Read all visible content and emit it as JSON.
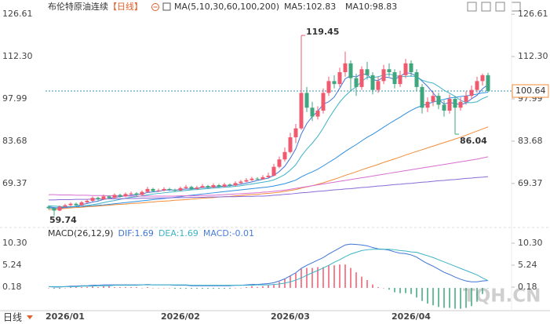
{
  "chart_data": {
    "type": "candlestick",
    "title": "布伦特原油连续",
    "period_label": "【日线】",
    "indicator_label": "MA(5,10,30,60,100,200)",
    "categories": [
      null,
      null,
      null,
      "2026/01",
      null,
      null,
      null,
      null,
      null,
      null,
      null,
      null,
      null,
      null,
      null,
      null,
      null,
      null,
      null,
      null,
      null,
      null,
      null,
      null,
      "2026/02",
      null,
      null,
      null,
      null,
      null,
      null,
      null,
      null,
      null,
      null,
      null,
      null,
      null,
      null,
      null,
      null,
      null,
      null,
      null,
      "2026/03",
      null,
      null,
      null,
      null,
      null,
      null,
      null,
      null,
      null,
      null,
      null,
      null,
      null,
      null,
      null,
      null,
      null,
      null,
      null,
      null,
      null,
      "2026/04",
      null,
      null,
      null,
      null,
      null,
      null,
      null,
      null,
      null,
      null,
      null,
      null,
      null,
      null
    ],
    "candles": [
      [
        61.5,
        62.0,
        60.6,
        61.0
      ],
      [
        61.0,
        61.4,
        59.74,
        60.2
      ],
      [
        60.2,
        61.9,
        60.0,
        61.5
      ],
      [
        61.5,
        62.5,
        61.2,
        62.0
      ],
      [
        62.0,
        63.0,
        61.7,
        62.5
      ],
      [
        62.5,
        62.9,
        61.6,
        62.0
      ],
      [
        62.0,
        63.4,
        61.8,
        63.0
      ],
      [
        63.0,
        64.0,
        62.6,
        63.5
      ],
      [
        63.5,
        65.0,
        63.2,
        64.5
      ],
      [
        64.5,
        64.9,
        63.6,
        64.0
      ],
      [
        64.0,
        65.6,
        63.8,
        65.0
      ],
      [
        65.0,
        65.4,
        64.1,
        64.5
      ],
      [
        64.5,
        66.0,
        64.3,
        65.5
      ],
      [
        65.5,
        65.9,
        64.6,
        65.0
      ],
      [
        65.0,
        66.3,
        64.8,
        65.8
      ],
      [
        65.8,
        66.6,
        65.4,
        66.0
      ],
      [
        66.0,
        66.4,
        65.1,
        65.5
      ],
      [
        65.5,
        67.0,
        65.3,
        66.5
      ],
      [
        66.5,
        68.2,
        66.2,
        67.5
      ],
      [
        67.5,
        67.9,
        66.4,
        66.8
      ],
      [
        66.8,
        67.6,
        66.5,
        67.0
      ],
      [
        67.0,
        68.1,
        66.7,
        67.5
      ],
      [
        67.5,
        67.9,
        66.8,
        67.2
      ],
      [
        67.2,
        67.6,
        66.5,
        67.0
      ],
      [
        67.0,
        68.3,
        66.8,
        67.8
      ],
      [
        67.8,
        68.9,
        67.5,
        68.2
      ],
      [
        68.2,
        68.6,
        67.1,
        67.5
      ],
      [
        67.5,
        68.6,
        67.3,
        68.0
      ],
      [
        68.0,
        69.2,
        67.8,
        68.5
      ],
      [
        68.5,
        68.9,
        67.6,
        68.0
      ],
      [
        68.0,
        69.4,
        67.8,
        68.8
      ],
      [
        68.8,
        69.2,
        67.9,
        68.3
      ],
      [
        68.3,
        69.6,
        68.0,
        69.0
      ],
      [
        69.0,
        69.4,
        68.3,
        68.7
      ],
      [
        68.7,
        70.1,
        68.5,
        69.5
      ],
      [
        69.5,
        70.6,
        69.2,
        70.0
      ],
      [
        70.0,
        71.2,
        69.8,
        70.5
      ],
      [
        70.5,
        71.6,
        70.2,
        71.0
      ],
      [
        71.0,
        71.5,
        70.3,
        70.8
      ],
      [
        70.8,
        72.2,
        70.6,
        71.5
      ],
      [
        71.5,
        73.0,
        71.2,
        72.0
      ],
      [
        72.0,
        76.0,
        71.8,
        75.0
      ],
      [
        75.0,
        78.5,
        74.5,
        77.5
      ],
      [
        77.5,
        81.5,
        76.8,
        80.0
      ],
      [
        80.0,
        86.5,
        79.5,
        85.0
      ],
      [
        85.0,
        89.5,
        83.0,
        88.0
      ],
      [
        88.0,
        119.45,
        87.5,
        100.0
      ],
      [
        100.0,
        102.0,
        93.5,
        95.0
      ],
      [
        95.0,
        97.0,
        90.5,
        92.0
      ],
      [
        92.0,
        95.5,
        91.0,
        94.0
      ],
      [
        94.0,
        101.5,
        93.0,
        100.0
      ],
      [
        100.0,
        105.5,
        99.0,
        104.0
      ],
      [
        104.0,
        106.0,
        101.5,
        103.0
      ],
      [
        103.0,
        108.5,
        102.0,
        107.0
      ],
      [
        107.0,
        114.0,
        105.5,
        110.0
      ],
      [
        110.0,
        111.0,
        100.5,
        105.0
      ],
      [
        105.0,
        106.5,
        99.0,
        102.0
      ],
      [
        102.0,
        109.0,
        101.0,
        108.0
      ],
      [
        108.0,
        110.5,
        104.5,
        106.0
      ],
      [
        106.0,
        107.0,
        99.5,
        101.0
      ],
      [
        101.0,
        105.5,
        100.0,
        104.0
      ],
      [
        104.0,
        109.5,
        103.0,
        108.0
      ],
      [
        108.0,
        110.0,
        105.5,
        107.0
      ],
      [
        107.0,
        108.0,
        101.5,
        103.0
      ],
      [
        103.0,
        107.5,
        102.0,
        106.0
      ],
      [
        106.0,
        111.5,
        105.0,
        110.0
      ],
      [
        110.0,
        111.0,
        105.5,
        107.0
      ],
      [
        107.0,
        108.0,
        100.5,
        102.0
      ],
      [
        102.0,
        103.0,
        93.0,
        95.0
      ],
      [
        95.0,
        98.5,
        93.5,
        97.0
      ],
      [
        97.0,
        100.5,
        95.5,
        99.0
      ],
      [
        99.0,
        100.0,
        94.5,
        96.0
      ],
      [
        96.0,
        97.5,
        92.0,
        94.0
      ],
      [
        94.0,
        99.5,
        93.0,
        98.0
      ],
      [
        98.0,
        99.0,
        86.04,
        95.0
      ],
      [
        95.0,
        98.5,
        94.0,
        97.0
      ],
      [
        97.0,
        100.5,
        96.0,
        99.0
      ],
      [
        99.0,
        102.5,
        98.0,
        101.0
      ],
      [
        101.0,
        105.5,
        100.0,
        104.0
      ],
      [
        104.0,
        106.5,
        102.5,
        106.0
      ],
      [
        106.0,
        106.8,
        100.2,
        100.64
      ]
    ],
    "up_color": "#ef5a6f",
    "down_color": "#3fa67e",
    "ylim": [
      55.8,
      130.1
    ],
    "yticks": [
      126.61,
      {
        "value": 112.3,
        "label": "112.30"
      },
      97.99,
      83.68,
      69.37
    ],
    "last_price": 100.64,
    "ma": [
      {
        "legend": "MA5:102.83",
        "color": "#3f74d6",
        "values": [
          61.5,
          61.2,
          61.0,
          61.2,
          61.4,
          61.6,
          62.2,
          62.6,
          63.1,
          63.4,
          64.0,
          64.3,
          64.7,
          64.9,
          65.2,
          65.4,
          65.6,
          65.8,
          66.3,
          66.5,
          66.7,
          67.1,
          67.2,
          67.1,
          67.3,
          67.5,
          67.5,
          67.7,
          68.0,
          68.0,
          68.2,
          68.3,
          68.5,
          68.6,
          68.9,
          69.1,
          69.5,
          69.9,
          70.4,
          70.8,
          71.2,
          72.1,
          73.4,
          75.2,
          77.9,
          81.1,
          86.1,
          89.6,
          92.0,
          93.8,
          96.2,
          97.0,
          98.6,
          101.6,
          104.8,
          105.8,
          105.4,
          106.4,
          106.2,
          104.4,
          104.2,
          105.4,
          105.2,
          104.6,
          105.6,
          106.8,
          106.6,
          105.6,
          104.0,
          102.2,
          100.0,
          97.8,
          96.2,
          96.8,
          96.4,
          96.0,
          96.6,
          98.0,
          99.2,
          101.4,
          102.8
        ]
      },
      {
        "legend": "MA10:98.83",
        "color": "#3db3c6",
        "values": [
          61.8,
          61.7,
          61.6,
          61.5,
          61.5,
          61.6,
          61.7,
          61.9,
          62.2,
          62.5,
          62.9,
          63.3,
          63.6,
          64.0,
          64.4,
          64.7,
          64.9,
          65.2,
          65.5,
          65.8,
          66.0,
          66.2,
          66.4,
          66.6,
          66.8,
          67.0,
          67.2,
          67.3,
          67.5,
          67.6,
          67.8,
          67.9,
          68.1,
          68.2,
          68.4,
          68.6,
          68.9,
          69.2,
          69.5,
          69.8,
          70.1,
          70.6,
          71.4,
          72.4,
          73.9,
          75.7,
          78.6,
          81.0,
          83.0,
          85.3,
          88.1,
          91.4,
          94.2,
          96.9,
          99.0,
          100.7,
          102.1,
          103.9,
          105.3,
          105.2,
          105.5,
          106.0,
          106.4,
          105.9,
          105.5,
          105.6,
          105.7,
          105.5,
          104.3,
          103.7,
          103.3,
          102.2,
          100.9,
          99.9,
          98.8,
          97.5,
          96.7,
          96.7,
          97.0,
          98.1,
          98.83
        ]
      },
      {
        "color": "#2d8fe0",
        "values": [
          61.0,
          61.1,
          61.2,
          61.3,
          61.4,
          61.5,
          61.6,
          61.7,
          61.8,
          62.0,
          62.1,
          62.3,
          62.5,
          62.7,
          62.9,
          63.1,
          63.3,
          63.5,
          63.7,
          63.9,
          64.1,
          64.3,
          64.5,
          64.7,
          64.9,
          65.2,
          65.4,
          65.6,
          65.8,
          66.0,
          66.2,
          66.4,
          66.6,
          66.8,
          67.0,
          67.2,
          67.4,
          67.6,
          67.8,
          68.0,
          68.2,
          68.5,
          68.9,
          69.3,
          69.9,
          70.5,
          71.6,
          72.5,
          73.3,
          74.2,
          75.3,
          76.5,
          77.6,
          78.9,
          80.2,
          81.4,
          82.5,
          83.8,
          85.0,
          86.0,
          87.2,
          88.4,
          89.6,
          90.7,
          91.8,
          93.0,
          94.1,
          95.0,
          95.7,
          96.3,
          96.9,
          97.4,
          97.8,
          98.3,
          98.5,
          98.8,
          99.0,
          99.3,
          99.6,
          100.0,
          100.2
        ]
      },
      {
        "color": "#f28c38",
        "values": [
          60.5,
          60.6,
          60.8,
          60.9,
          61.1,
          61.2,
          61.3,
          61.5,
          61.6,
          61.7,
          61.9,
          62.0,
          62.2,
          62.3,
          62.4,
          62.6,
          62.7,
          62.8,
          63.0,
          63.1,
          63.3,
          63.4,
          63.5,
          63.7,
          63.8,
          63.9,
          64.1,
          64.2,
          64.4,
          64.5,
          64.6,
          64.8,
          64.9,
          65.0,
          65.2,
          65.3,
          65.5,
          65.6,
          65.7,
          65.9,
          66.0,
          66.2,
          66.4,
          66.7,
          67.0,
          67.3,
          67.8,
          68.2,
          68.6,
          69.1,
          69.6,
          70.2,
          70.8,
          71.4,
          72.1,
          72.7,
          73.3,
          74.0,
          74.6,
          75.2,
          75.8,
          76.5,
          77.1,
          77.7,
          78.3,
          79.0,
          79.6,
          80.2,
          80.8,
          81.4,
          82.0,
          82.6,
          83.2,
          83.8,
          84.4,
          85.0,
          85.7,
          86.4,
          87.1,
          87.8,
          88.5
        ]
      },
      {
        "color": "#d86fd0",
        "values": [
          65.6,
          65.6,
          65.5,
          65.5,
          65.5,
          65.4,
          65.4,
          65.4,
          65.3,
          65.3,
          65.3,
          65.2,
          65.2,
          65.2,
          65.2,
          65.1,
          65.1,
          65.1,
          65.1,
          65.1,
          65.1,
          65.1,
          65.1,
          65.1,
          65.2,
          65.2,
          65.2,
          65.3,
          65.3,
          65.4,
          65.4,
          65.5,
          65.6,
          65.7,
          65.8,
          65.9,
          66.0,
          66.1,
          66.2,
          66.4,
          66.5,
          66.7,
          66.9,
          67.1,
          67.4,
          67.7,
          68.0,
          68.3,
          68.6,
          68.9,
          69.2,
          69.5,
          69.8,
          70.1,
          70.4,
          70.7,
          71.0,
          71.3,
          71.6,
          71.9,
          72.2,
          72.5,
          72.8,
          73.1,
          73.4,
          73.7,
          74.0,
          74.3,
          74.6,
          74.9,
          75.2,
          75.5,
          75.8,
          76.1,
          76.4,
          76.7,
          77.0,
          77.3,
          77.6,
          78.0,
          78.4
        ]
      },
      {
        "color": "#8a6ad8",
        "values": [
          63.8,
          63.8,
          63.9,
          63.9,
          63.9,
          64.0,
          64.0,
          64.0,
          64.1,
          64.1,
          64.1,
          64.2,
          64.2,
          64.2,
          64.3,
          64.3,
          64.3,
          64.4,
          64.4,
          64.4,
          64.5,
          64.5,
          64.5,
          64.6,
          64.6,
          64.6,
          64.7,
          64.7,
          64.7,
          64.8,
          64.8,
          64.8,
          64.9,
          64.9,
          64.9,
          65.0,
          65.0,
          65.0,
          65.1,
          65.1,
          65.2,
          65.4,
          65.5,
          65.7,
          65.8,
          66.0,
          66.2,
          66.3,
          66.5,
          66.7,
          66.8,
          67.0,
          67.2,
          67.3,
          67.5,
          67.6,
          67.8,
          68.0,
          68.1,
          68.3,
          68.5,
          68.6,
          68.8,
          69.0,
          69.1,
          69.3,
          69.4,
          69.6,
          69.8,
          69.9,
          70.1,
          70.3,
          70.4,
          70.6,
          70.7,
          70.9,
          71.1,
          71.2,
          71.4,
          71.5,
          71.7
        ]
      }
    ],
    "macd": {
      "title": "MACD(26,12,9)",
      "dif_label": "DIF:1.69",
      "dea_label": "DEA:1.69",
      "macd_label": "MACD:-0.01",
      "dif_color": "#3f74d6",
      "dea_color": "#3db3c6",
      "ylim": [
        -5.06,
        12.47
      ],
      "yticks": [
        {
          "value": 10.3,
          "label": "10.30"
        },
        5.24,
        0.18
      ],
      "dif": [
        0.3,
        0.2,
        0.2,
        0.3,
        0.4,
        0.4,
        0.5,
        0.5,
        0.6,
        0.6,
        0.7,
        0.7,
        0.7,
        0.7,
        0.7,
        0.7,
        0.7,
        0.7,
        0.8,
        0.7,
        0.7,
        0.7,
        0.7,
        0.6,
        0.6,
        0.6,
        0.5,
        0.5,
        0.5,
        0.5,
        0.5,
        0.5,
        0.5,
        0.5,
        0.6,
        0.6,
        0.7,
        0.8,
        0.8,
        0.9,
        1.0,
        1.2,
        1.6,
        2.1,
        2.8,
        3.5,
        4.5,
        5.2,
        5.8,
        6.4,
        7.0,
        7.8,
        8.5,
        9.2,
        9.9,
        10.1,
        10.0,
        9.9,
        9.7,
        9.3,
        9.0,
        8.9,
        8.7,
        8.3,
        8.0,
        7.9,
        7.6,
        7.1,
        6.3,
        5.6,
        5.0,
        4.3,
        3.6,
        3.1,
        2.5,
        2.0,
        1.6,
        1.4,
        1.4,
        1.6,
        1.69
      ],
      "dea": [
        0.3,
        0.3,
        0.3,
        0.3,
        0.3,
        0.3,
        0.4,
        0.4,
        0.4,
        0.5,
        0.5,
        0.5,
        0.6,
        0.6,
        0.6,
        0.6,
        0.6,
        0.7,
        0.7,
        0.7,
        0.7,
        0.7,
        0.7,
        0.7,
        0.7,
        0.7,
        0.6,
        0.6,
        0.6,
        0.6,
        0.6,
        0.6,
        0.6,
        0.6,
        0.6,
        0.6,
        0.6,
        0.6,
        0.7,
        0.7,
        0.7,
        0.8,
        0.9,
        1.1,
        1.4,
        1.8,
        2.3,
        2.9,
        3.5,
        4.0,
        4.6,
        5.2,
        5.9,
        6.5,
        7.2,
        7.8,
        8.2,
        8.6,
        8.8,
        8.9,
        8.9,
        8.9,
        8.9,
        8.8,
        8.6,
        8.5,
        8.3,
        8.2,
        7.8,
        7.4,
        7.0,
        6.5,
        6.0,
        5.5,
        5.0,
        4.5,
        4.0,
        3.5,
        3.0,
        2.3,
        1.69
      ],
      "hist": [
        0.0,
        -0.2,
        -0.2,
        0.0,
        0.2,
        0.2,
        0.2,
        0.2,
        0.4,
        0.2,
        0.4,
        0.4,
        0.2,
        0.2,
        0.2,
        0.2,
        0.2,
        0.0,
        0.2,
        0.0,
        0.0,
        0.0,
        0.0,
        -0.2,
        -0.2,
        -0.2,
        -0.2,
        -0.2,
        -0.2,
        -0.2,
        -0.2,
        -0.2,
        -0.2,
        -0.2,
        0.0,
        0.0,
        0.2,
        0.4,
        0.2,
        0.4,
        0.6,
        0.8,
        1.4,
        2.0,
        2.8,
        3.4,
        4.4,
        4.6,
        4.6,
        4.8,
        4.8,
        5.2,
        5.2,
        5.4,
        5.4,
        4.6,
        3.6,
        2.6,
        1.8,
        0.8,
        0.2,
        0.0,
        -0.4,
        -1.0,
        -1.2,
        -1.2,
        -1.4,
        -2.2,
        -3.0,
        -3.6,
        -4.0,
        -4.4,
        -4.6,
        -4.6,
        -4.8,
        -4.8,
        -4.6,
        -4.2,
        -3.2,
        -1.4,
        -0.01
      ]
    },
    "footer_label": "日线",
    "watermark": "TQH.CN"
  }
}
